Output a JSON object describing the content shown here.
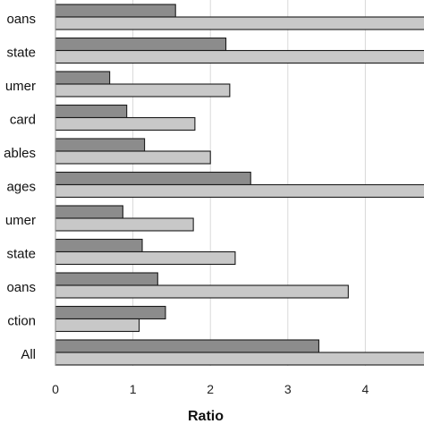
{
  "chart_data": {
    "type": "bar",
    "orientation": "horizontal",
    "categories": [
      "oans",
      "state",
      "umer",
      "card",
      "ables",
      "ages",
      "umer",
      "state",
      "oans",
      "ction",
      "All"
    ],
    "series": [
      {
        "values": [
          1.55,
          2.2,
          0.7,
          0.92,
          1.15,
          2.52,
          0.87,
          1.12,
          1.32,
          1.42,
          3.4
        ],
        "color": "#8c8c8c"
      },
      {
        "values": [
          5.2,
          5.2,
          2.25,
          1.8,
          2.0,
          5.2,
          1.78,
          2.32,
          3.78,
          1.08,
          5.2
        ],
        "color": "#c8c8c8"
      }
    ],
    "xlabel": "Ratio",
    "xlim": [
      0,
      5.2
    ],
    "xticks": [
      0,
      1,
      2,
      3,
      4
    ],
    "grid": true,
    "legend": "none"
  }
}
